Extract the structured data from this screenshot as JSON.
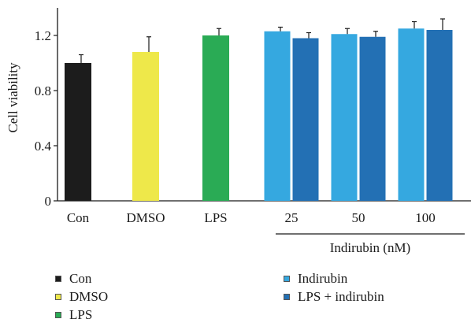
{
  "chart_data": {
    "type": "bar",
    "ylabel": "Cell viability",
    "ylim": [
      0,
      1.4
    ],
    "yticks": [
      "0",
      "0.4",
      "0.8",
      "1.2"
    ],
    "ytick_values": [
      0,
      0.4,
      0.8,
      1.2
    ],
    "categories": [
      "Con",
      "DMSO",
      "LPS",
      "25",
      "50",
      "100"
    ],
    "group_label": "Indirubin (nM)",
    "series": [
      {
        "name": "Con",
        "color": "#1c1c1c",
        "values": [
          1.0,
          null,
          null,
          null,
          null,
          null
        ],
        "errors": [
          0.06,
          null,
          null,
          null,
          null,
          null
        ]
      },
      {
        "name": "DMSO",
        "color": "#eee84a",
        "values": [
          null,
          1.08,
          null,
          null,
          null,
          null
        ],
        "errors": [
          null,
          0.11,
          null,
          null,
          null,
          null
        ]
      },
      {
        "name": "LPS",
        "color": "#2aab55",
        "values": [
          null,
          null,
          1.2,
          null,
          null,
          null
        ],
        "errors": [
          null,
          null,
          0.05,
          null,
          null,
          null
        ]
      },
      {
        "name": "Indirubin",
        "color": "#35a8e0",
        "values": [
          null,
          null,
          null,
          1.23,
          1.21,
          1.25
        ],
        "errors": [
          null,
          null,
          null,
          0.03,
          0.04,
          0.05
        ]
      },
      {
        "name": "LPS + indirubin",
        "color": "#2370b4",
        "values": [
          null,
          null,
          null,
          1.18,
          1.19,
          1.24
        ],
        "errors": [
          null,
          null,
          null,
          0.04,
          0.04,
          0.08
        ]
      }
    ],
    "grid": false,
    "legend_position": "bottom"
  },
  "legend": {
    "left": [
      {
        "label": "Con",
        "color": "#1c1c1c"
      },
      {
        "label": "DMSO",
        "color": "#eee84a"
      },
      {
        "label": "LPS",
        "color": "#2aab55"
      }
    ],
    "right": [
      {
        "label": "Indirubin",
        "color": "#35a8e0"
      },
      {
        "label": "LPS + indirubin",
        "color": "#2370b4"
      }
    ]
  }
}
